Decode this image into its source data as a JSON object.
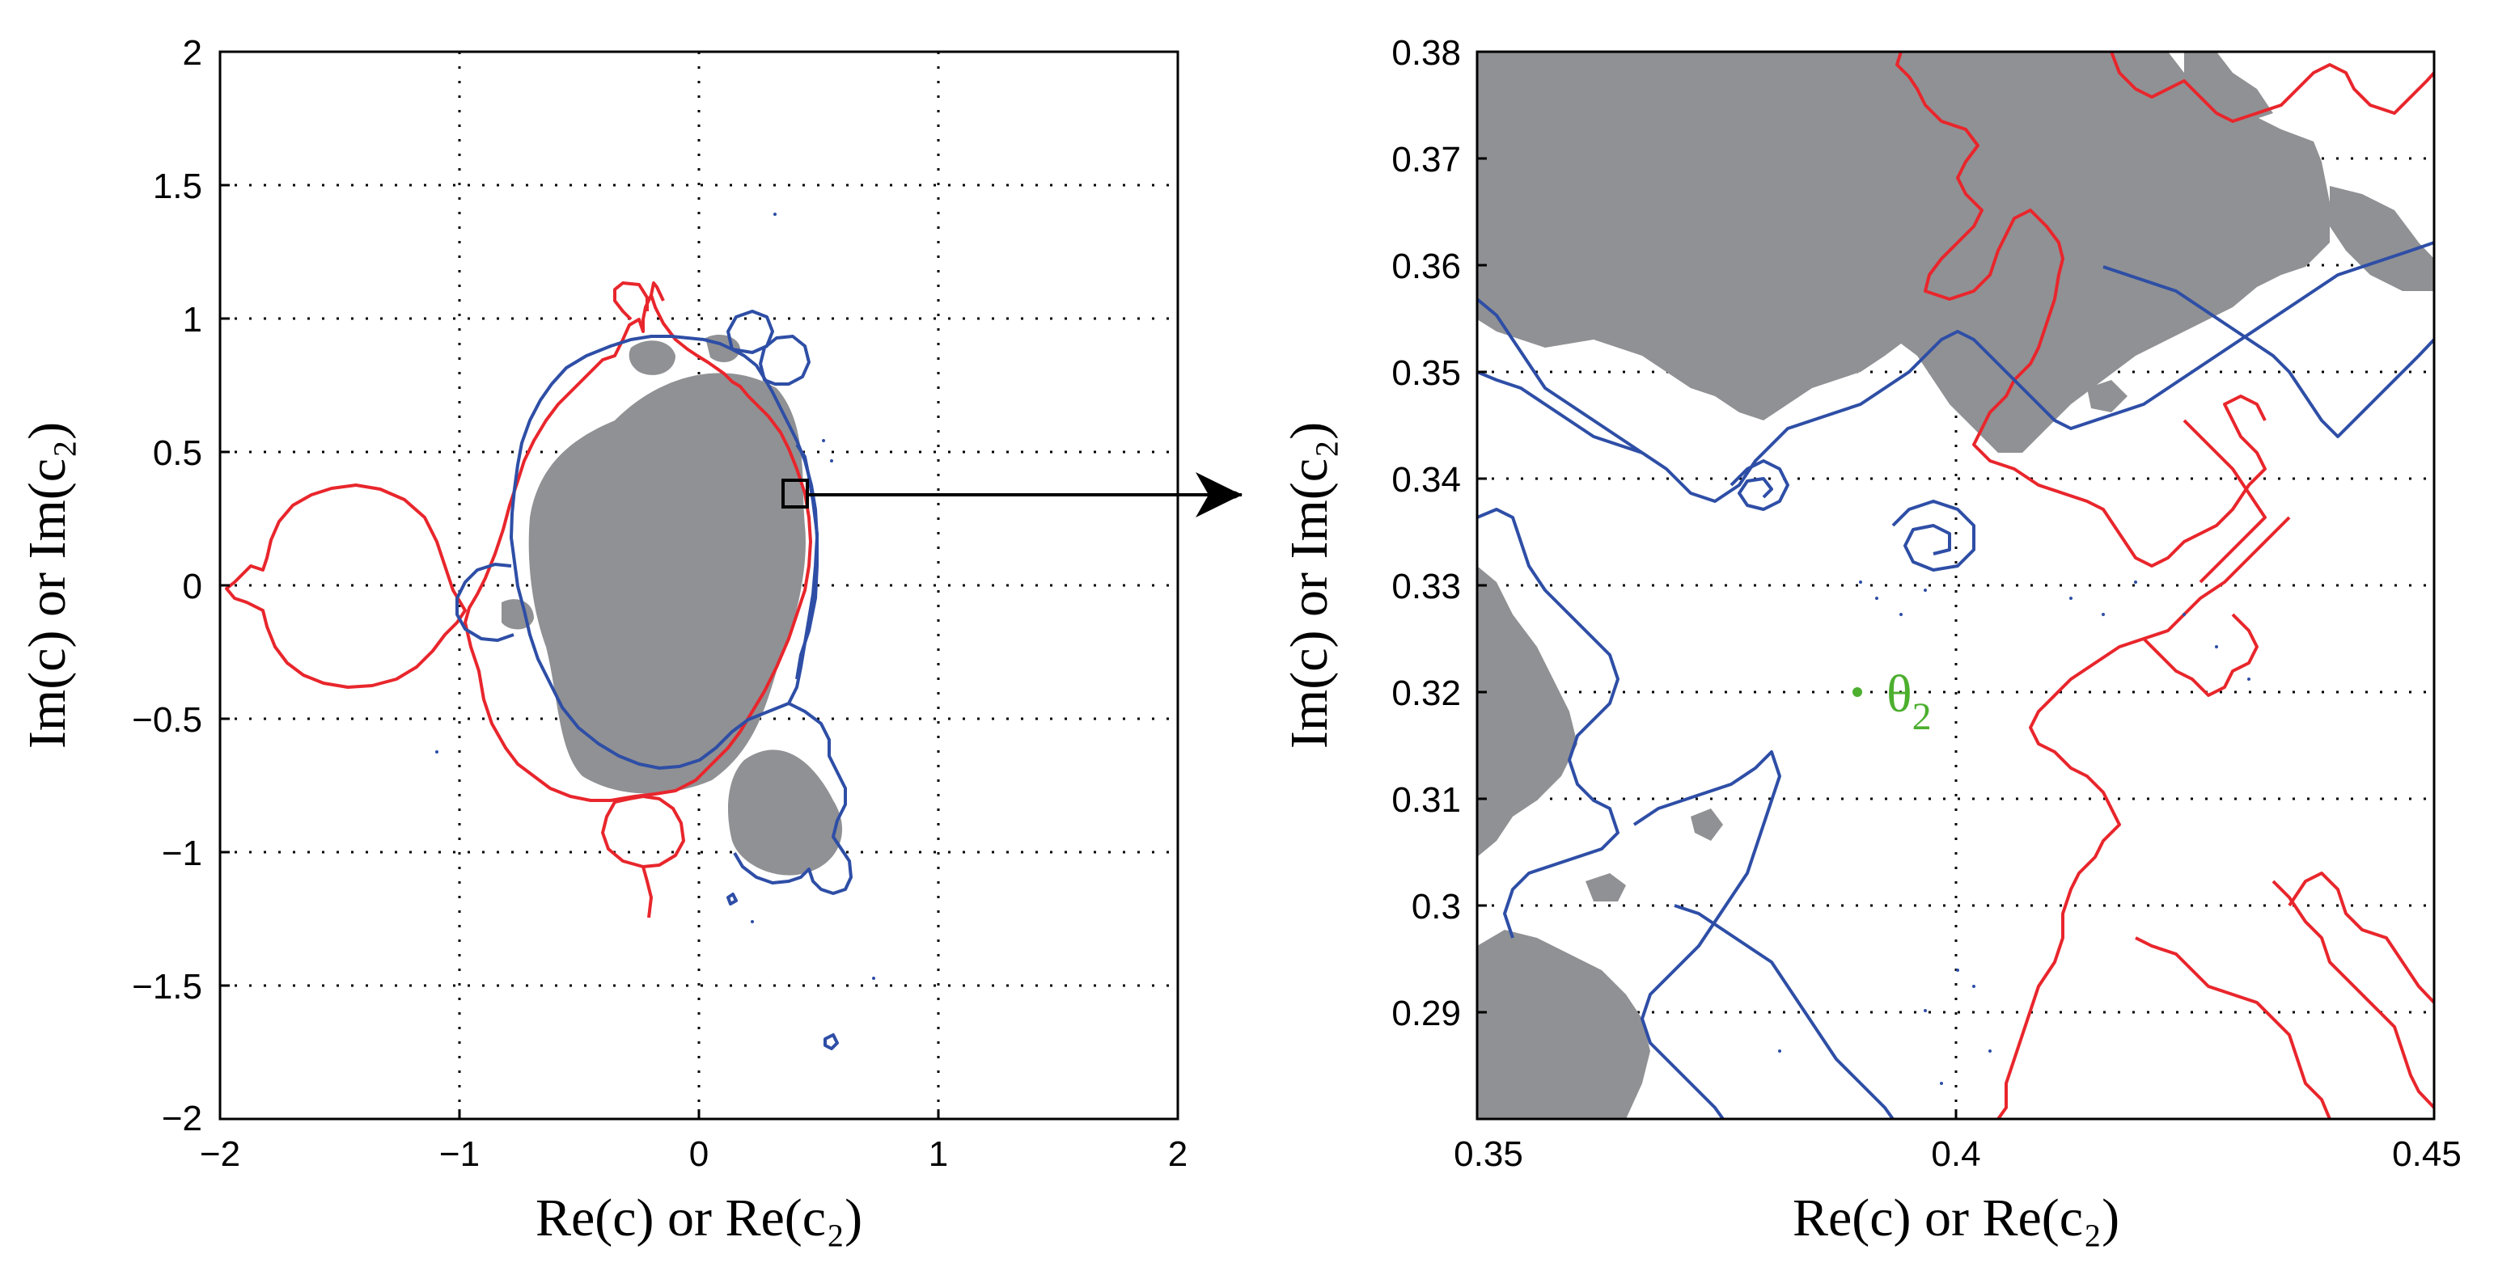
{
  "chart_data": [
    {
      "type": "scatter",
      "title": "",
      "xlabel": "Re(c) or Re(c₂)",
      "ylabel": "Im(c) or Im(c₂)",
      "xlim": [
        -2,
        2
      ],
      "ylim": [
        -2,
        2
      ],
      "grid": true,
      "x_ticks": [
        "−2",
        "−1",
        "0",
        "1",
        "2"
      ],
      "x_tick_values": [
        -2,
        -1,
        0,
        1,
        2
      ],
      "y_ticks": [
        "2",
        "1.5",
        "1",
        "0.5",
        "0",
        "−0.5",
        "−1",
        "−1.5",
        "−2"
      ],
      "y_tick_values": [
        2,
        1.5,
        1,
        0.5,
        0,
        -0.5,
        -1,
        -1.5,
        -2
      ],
      "inset_box": {
        "x": [
          0.35,
          0.45
        ],
        "y": [
          0.28,
          0.38
        ]
      },
      "series": [
        {
          "name": "gray filled set",
          "color": "#909194"
        },
        {
          "name": "red boundary",
          "color": "#e8262c"
        },
        {
          "name": "blue boundary",
          "color": "#2e4ea6"
        }
      ]
    },
    {
      "type": "scatter",
      "title": "",
      "xlabel": "Re(c) or Re(c₂)",
      "ylabel": "Im(c) or Im(c₂)",
      "xlim": [
        0.35,
        0.45
      ],
      "ylim": [
        0.28,
        0.38
      ],
      "grid": true,
      "x_ticks": [
        "0.35",
        "0.4",
        "0.45"
      ],
      "x_tick_values": [
        0.35,
        0.4,
        0.45
      ],
      "y_ticks": [
        "0.38",
        "0.37",
        "0.36",
        "0.35",
        "0.34",
        "0.33",
        "0.32",
        "0.31",
        "0.3",
        "0.29"
      ],
      "y_tick_values": [
        0.38,
        0.37,
        0.36,
        0.35,
        0.34,
        0.33,
        0.32,
        0.31,
        0.3,
        0.29
      ],
      "annotation": {
        "label": "θ",
        "subscript": "2",
        "x": 0.39,
        "y": 0.32,
        "color": "#4caf2e"
      },
      "series": [
        {
          "name": "gray filled set",
          "color": "#909194"
        },
        {
          "name": "red boundary",
          "color": "#e8262c"
        },
        {
          "name": "blue boundary",
          "color": "#2e4ea6"
        }
      ]
    }
  ]
}
